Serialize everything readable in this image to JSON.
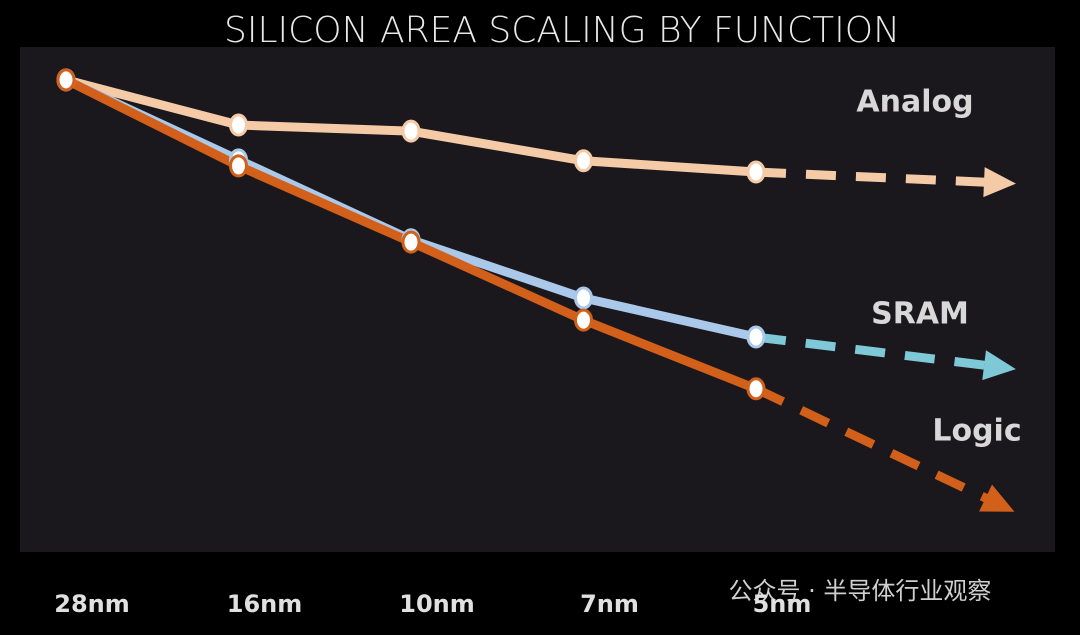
{
  "chart_data": {
    "type": "line",
    "title": "SILICON AREA SCALING BY FUNCTION",
    "categories": [
      "28nm",
      "16nm",
      "10nm",
      "7nm",
      "5nm",
      null
    ],
    "series": [
      {
        "name": "Analog",
        "color": "#f5cba7",
        "values": [
          100,
          90.4,
          89.1,
          82.8,
          80.4,
          78.1
        ]
      },
      {
        "name": "SRAM",
        "color": "#a9c8ea",
        "values": [
          100,
          83.0,
          66.0,
          53.6,
          45.3,
          38.9
        ]
      },
      {
        "name": "Logic",
        "color": "#d2601a",
        "values": [
          100,
          81.7,
          65.5,
          48.9,
          34.3,
          9.6
        ]
      }
    ],
    "ylim": [
      0,
      107
    ],
    "watermark": "公众号 · 半导体行业观察"
  }
}
